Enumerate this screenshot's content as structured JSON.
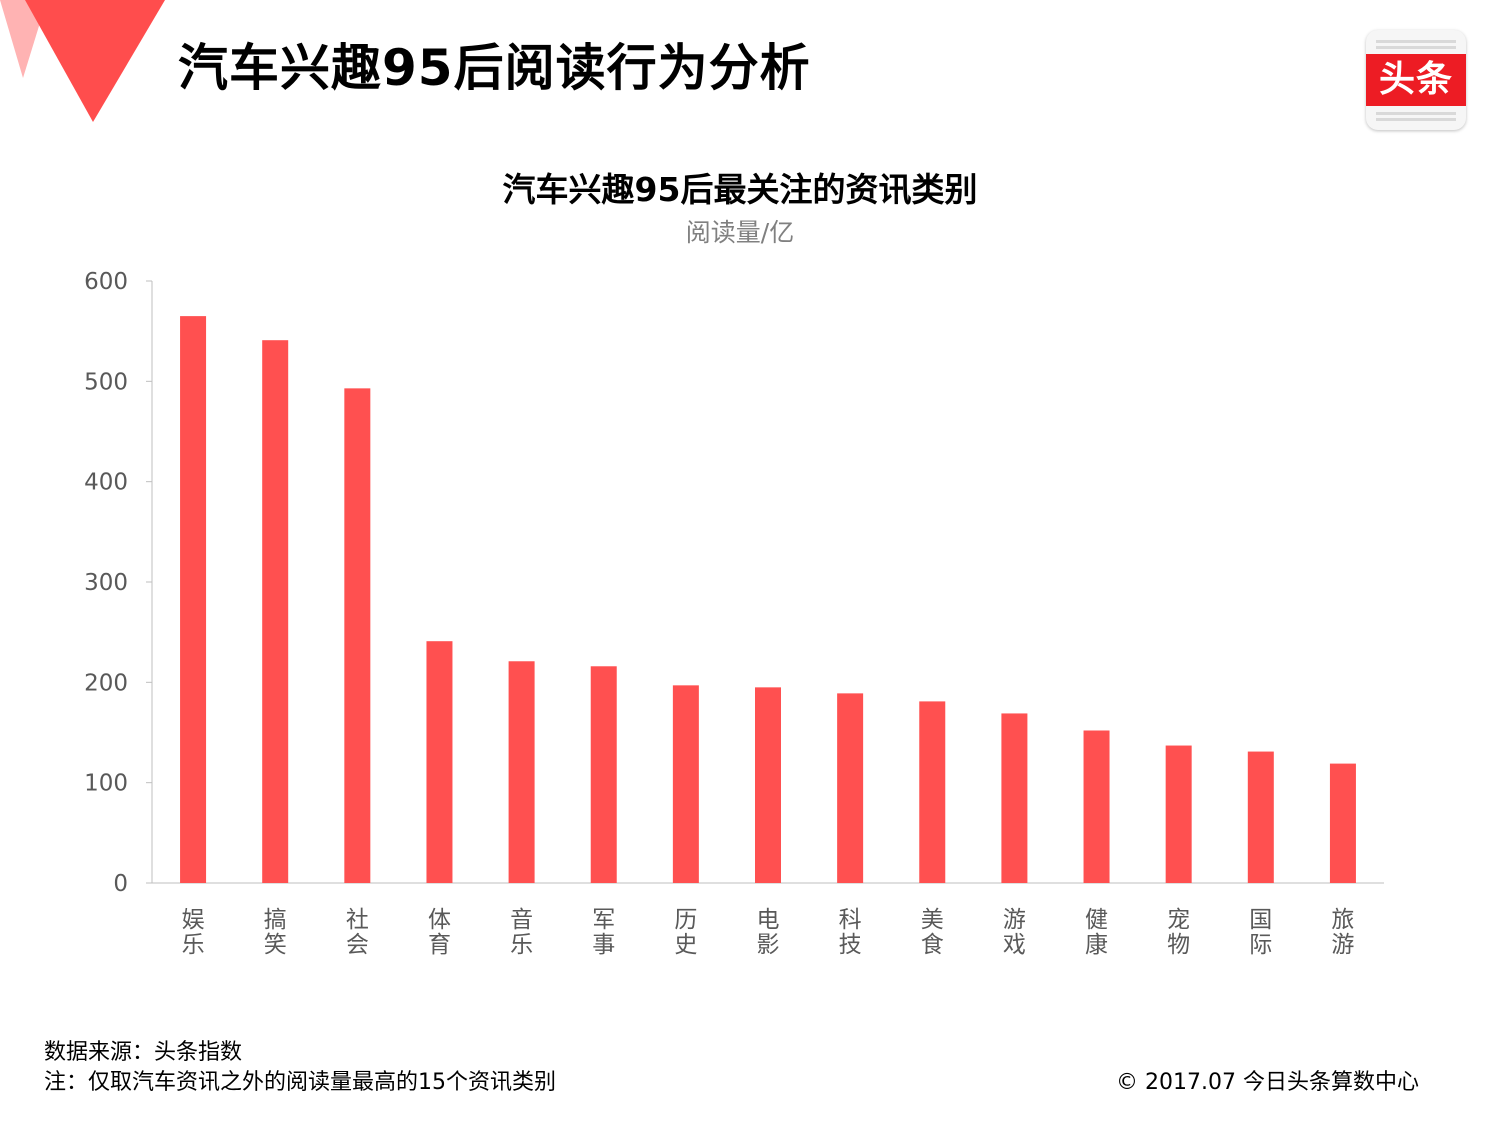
{
  "header": {
    "title": "汽车兴趣95后阅读行为分析",
    "logo_text": "头条",
    "accent_color": "#ed1c24"
  },
  "chart_data": {
    "type": "bar",
    "title": "汽车兴趣95后最关注的资讯类别",
    "ylabel": "阅读量/亿",
    "xlabel": "",
    "ylim": [
      0,
      600
    ],
    "yticks": [
      0,
      100,
      200,
      300,
      400,
      500,
      600
    ],
    "bar_color": "#ff5050",
    "categories": [
      "娱乐",
      "搞笑",
      "社会",
      "体育",
      "音乐",
      "军事",
      "历史",
      "电影",
      "科技",
      "美食",
      "游戏",
      "健康",
      "宠物",
      "国际",
      "旅游"
    ],
    "values": [
      565,
      541,
      493,
      241,
      221,
      216,
      197,
      195,
      189,
      181,
      169,
      152,
      137,
      131,
      119
    ],
    "grid": false,
    "legend": "none"
  },
  "footer": {
    "source": "数据来源：头条指数",
    "note": "注：仅取汽车资讯之外的阅读量最高的15个资讯类别",
    "copyright": "© 2017.07 今日头条算数中心"
  }
}
